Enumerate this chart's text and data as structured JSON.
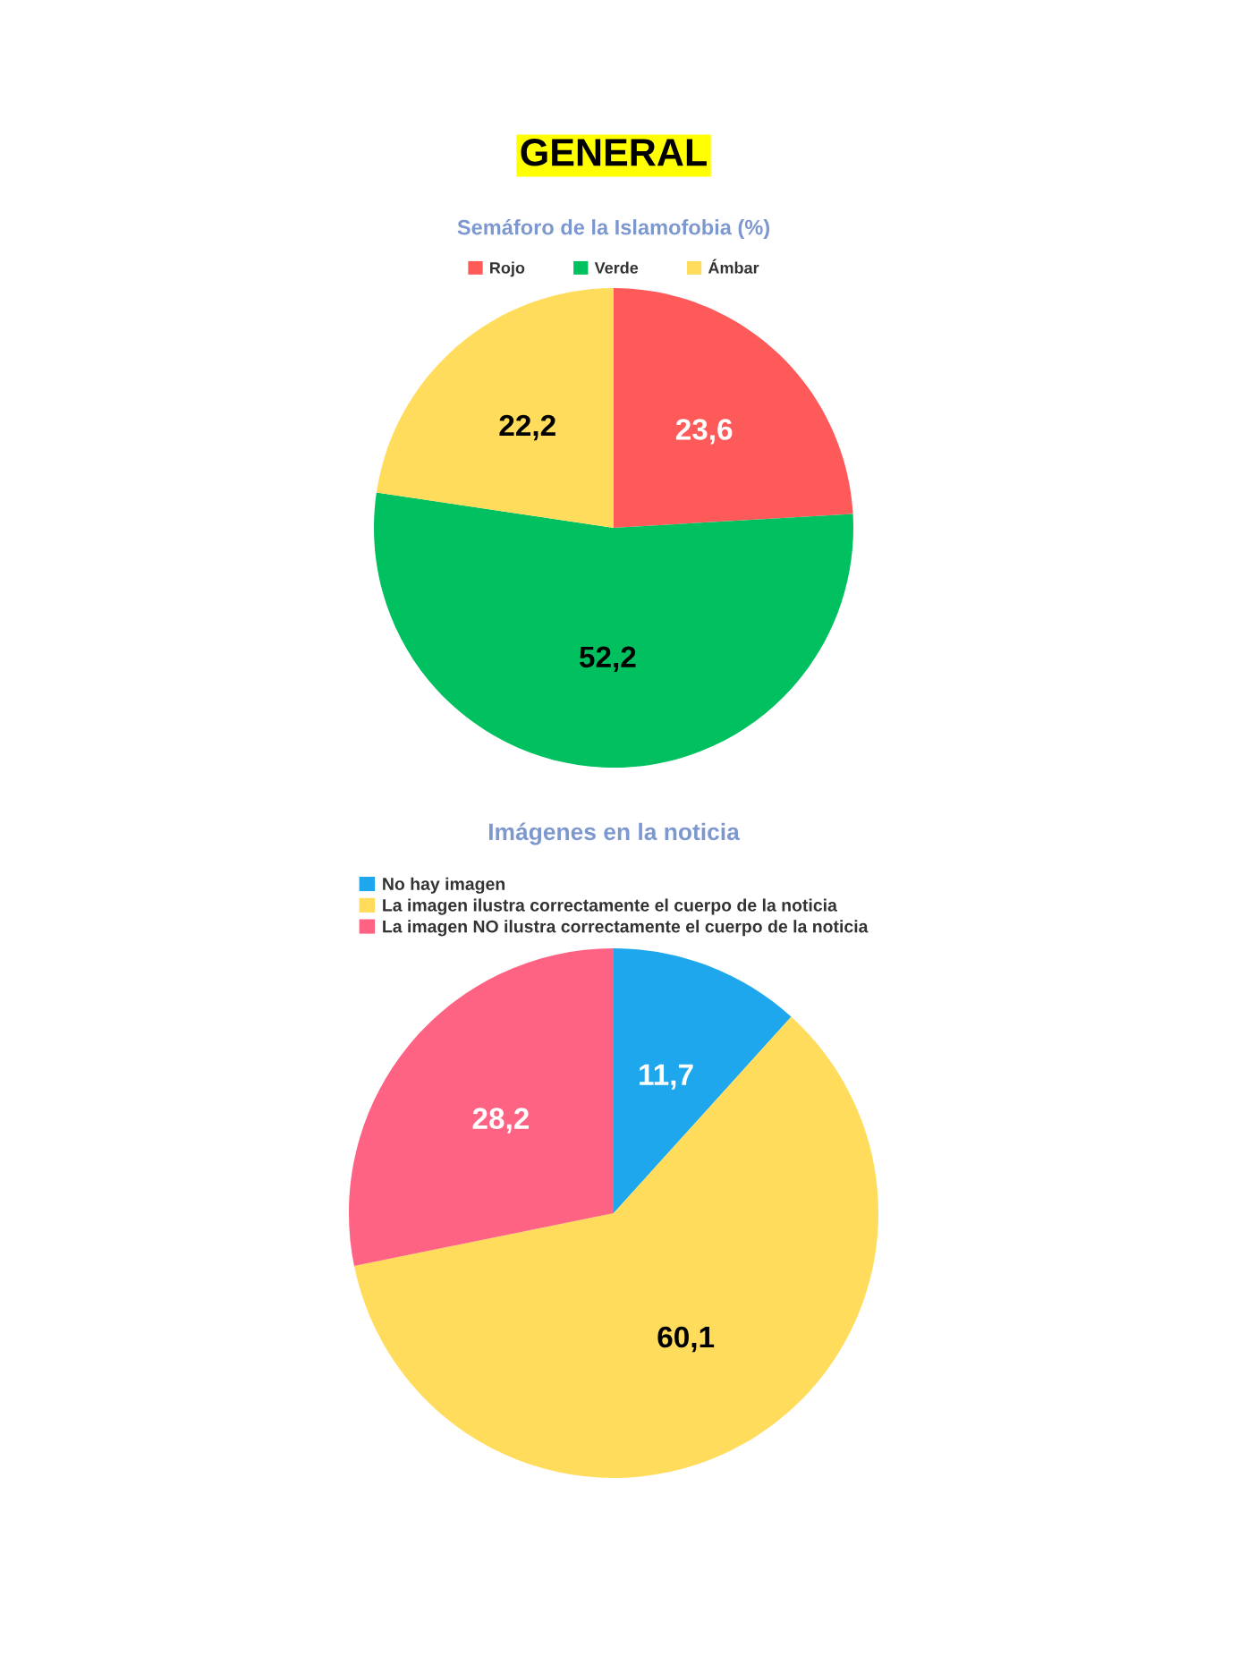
{
  "chart_data": [
    {
      "type": "pie",
      "annotations": [
        "GENERAL"
      ],
      "title": "Semáforo de la Islamofobia (%)",
      "categories": [
        "Rojo",
        "Verde",
        "Ámbar"
      ],
      "values": [
        23.6,
        52.2,
        22.2
      ],
      "colors": [
        "#ff5a5a",
        "#00c060",
        "#ffdc5c"
      ],
      "value_labels": [
        "23,6",
        "52,2",
        "22,2"
      ],
      "legend": "top"
    },
    {
      "type": "pie",
      "title": "Imágenes en la noticia",
      "categories": [
        "No hay imagen",
        "La imagen ilustra correctamente el cuerpo de la noticia",
        "La imagen NO ilustra correctamente el cuerpo de la noticia"
      ],
      "values": [
        11.7,
        60.1,
        28.2
      ],
      "colors": [
        "#1ea7ec",
        "#ffdc5c",
        "#ff6384"
      ],
      "value_labels": [
        "11,7",
        "60,1",
        "28,2"
      ],
      "legend": "top"
    }
  ]
}
